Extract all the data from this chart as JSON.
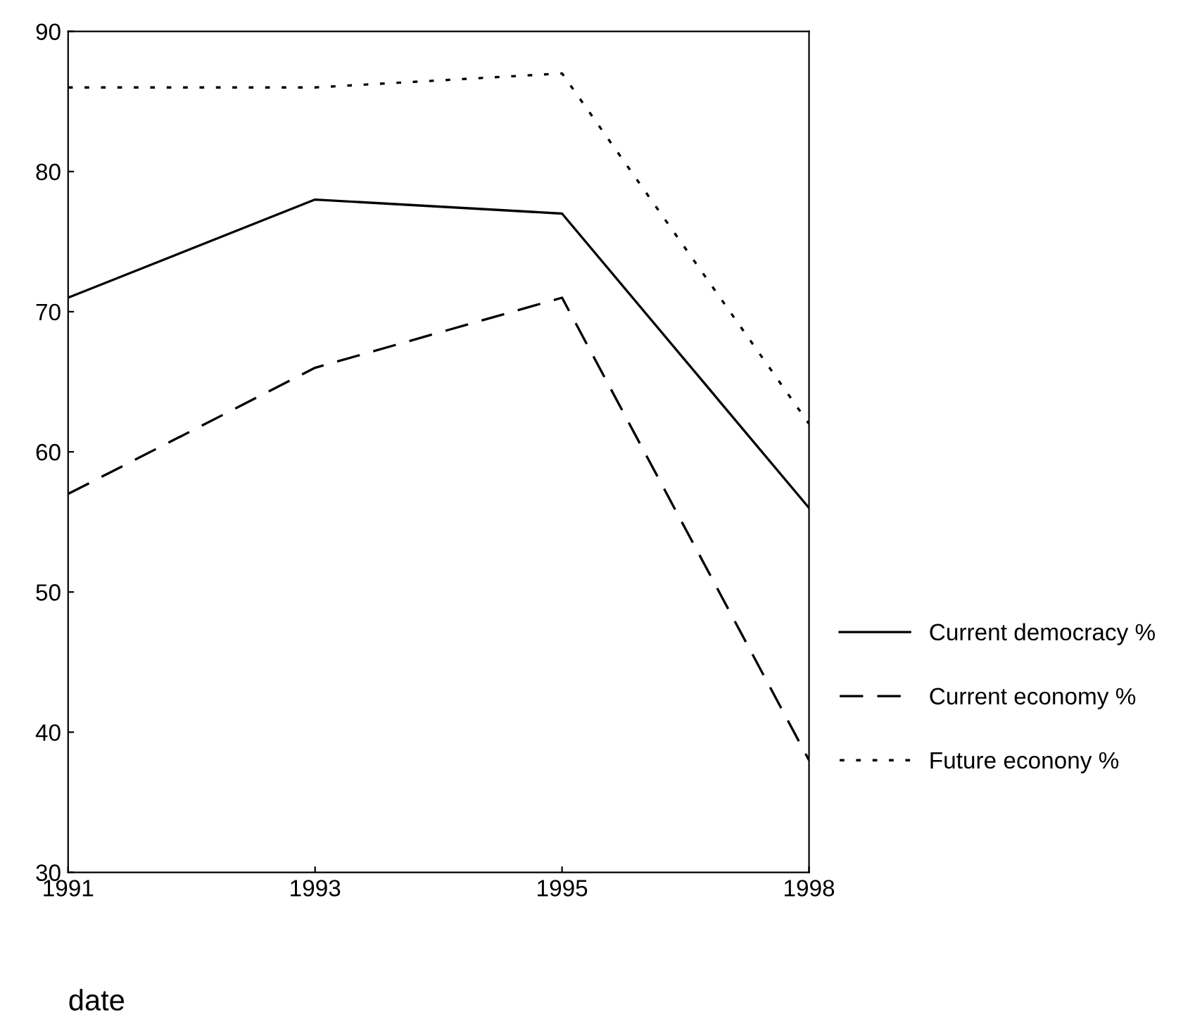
{
  "chart_data": {
    "type": "line",
    "xlabel": "date",
    "categories": [
      "1991",
      "1993",
      "1995",
      "1998"
    ],
    "series": [
      {
        "name": "Current democracy %",
        "color": "#000000",
        "line_style": "solid",
        "values": [
          71,
          78,
          77,
          56
        ]
      },
      {
        "name": "Current economy %",
        "color": "#000000",
        "line_style": "dashed",
        "values": [
          57,
          66,
          71,
          38
        ]
      },
      {
        "name": "Future econony %",
        "color": "#000000",
        "line_style": "dotted",
        "values": [
          86,
          86,
          87,
          62
        ]
      }
    ],
    "ylim": [
      30,
      90
    ],
    "yticks": [
      30,
      40,
      50,
      60,
      70,
      80,
      90
    ],
    "grid": false,
    "legend": "right",
    "marker": "none"
  }
}
